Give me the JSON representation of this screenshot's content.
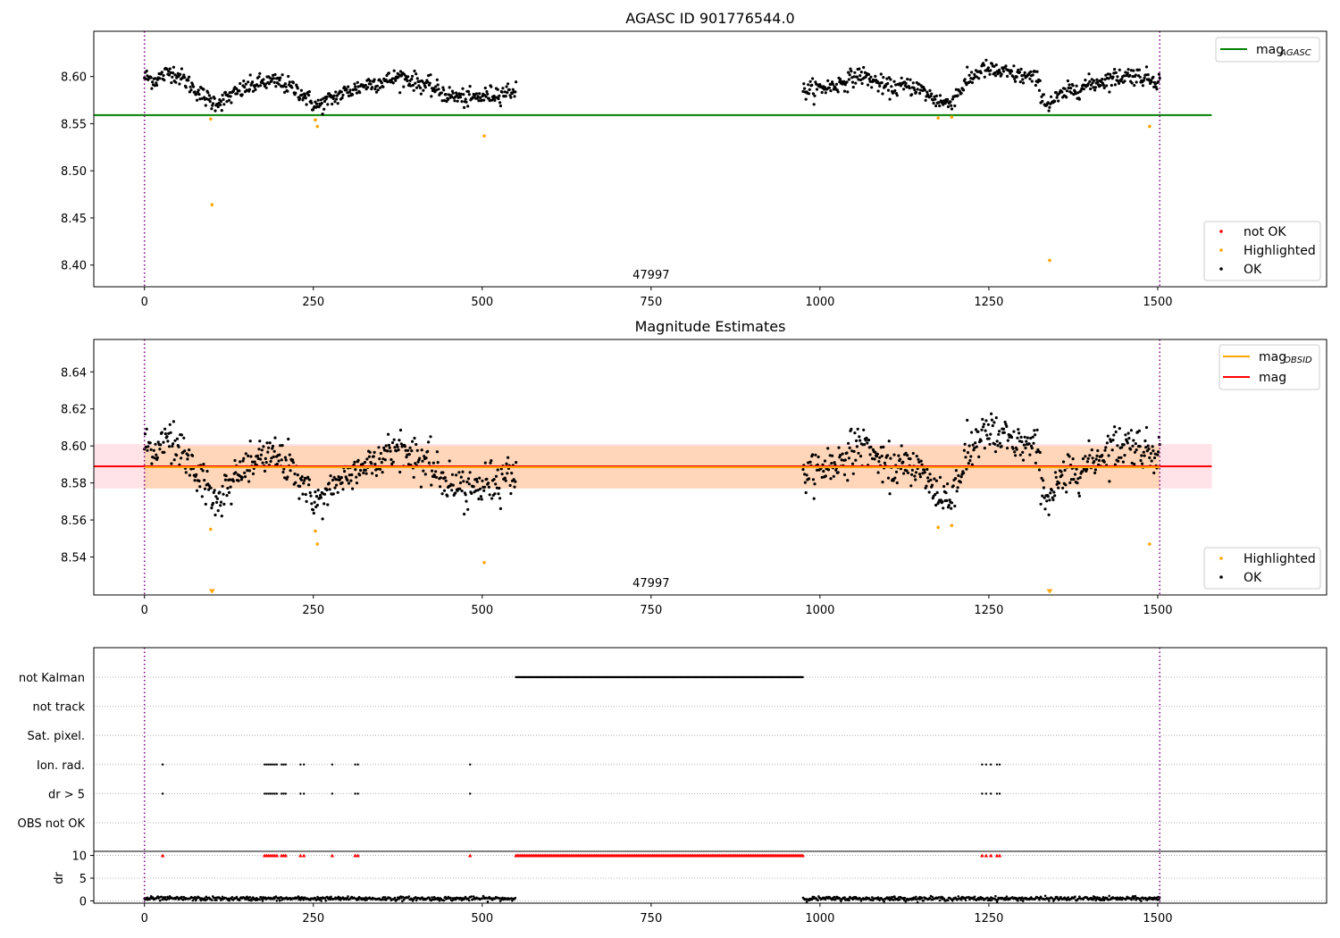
{
  "chart_data": [
    {
      "type": "scatter",
      "title": "AGASC ID 901776544.0",
      "xlim": [
        -75,
        1750
      ],
      "ylim": [
        8.377,
        8.648
      ],
      "x_ticks": [
        0,
        250,
        500,
        750,
        1000,
        1250,
        1500
      ],
      "y_ticks": [
        8.4,
        8.45,
        8.5,
        8.55,
        8.6
      ],
      "y_tick_format": 2,
      "obsid_label": "47997",
      "obsid_label_x": 750,
      "vlines": [
        0,
        1503
      ],
      "hline": {
        "y": 8.559,
        "x_range": [
          -75,
          1580
        ],
        "color": "#008000"
      },
      "line_legend": {
        "text": "mag",
        "subscript": "AGASC",
        "color": "#008000"
      },
      "point_legend": [
        {
          "label": "not OK",
          "color": "#ff0000"
        },
        {
          "label": "Highlighted",
          "color": "#ffa500"
        },
        {
          "label": "OK",
          "color": "#000000"
        }
      ],
      "ok_series": {
        "segments": [
          [
            0,
            550
          ],
          [
            975,
            1503
          ]
        ],
        "profile_x": [
          0,
          15,
          40,
          60,
          80,
          100,
          115,
          150,
          175,
          200,
          230,
          255,
          290,
          330,
          360,
          380,
          420,
          450,
          480,
          550,
          975,
          1020,
          1060,
          1100,
          1140,
          1170,
          1190,
          1220,
          1240,
          1280,
          1320,
          1335,
          1370,
          1420,
          1460,
          1503
        ],
        "profile_y": [
          8.6,
          8.596,
          8.606,
          8.596,
          8.583,
          8.573,
          8.574,
          8.588,
          8.594,
          8.594,
          8.584,
          8.568,
          8.581,
          8.592,
          8.596,
          8.6,
          8.59,
          8.58,
          8.576,
          8.586,
          8.585,
          8.59,
          8.602,
          8.588,
          8.59,
          8.576,
          8.571,
          8.596,
          8.608,
          8.603,
          8.598,
          8.57,
          8.585,
          8.596,
          8.602,
          8.596
        ],
        "noise": 0.008,
        "point_count": 1000
      },
      "highlighted": [
        {
          "x": 98,
          "y": 8.555
        },
        {
          "x": 100,
          "y": 8.464
        },
        {
          "x": 253,
          "y": 8.554
        },
        {
          "x": 256,
          "y": 8.547
        },
        {
          "x": 503,
          "y": 8.537
        },
        {
          "x": 1175,
          "y": 8.556
        },
        {
          "x": 1195,
          "y": 8.557
        },
        {
          "x": 1340,
          "y": 8.405
        },
        {
          "x": 1488,
          "y": 8.547
        }
      ]
    },
    {
      "type": "scatter",
      "title": "Magnitude Estimates",
      "xlim": [
        -75,
        1750
      ],
      "ylim": [
        8.5195,
        8.6575
      ],
      "x_ticks": [
        0,
        250,
        500,
        750,
        1000,
        1250,
        1500
      ],
      "y_ticks": [
        8.54,
        8.56,
        8.58,
        8.6,
        8.62,
        8.64
      ],
      "y_tick_format": 2,
      "obsid_label": "47997",
      "obsid_label_x": 750,
      "vlines": [
        0,
        1503
      ],
      "mag_line": {
        "y": 8.589,
        "color": "#ff0000"
      },
      "mag_band": {
        "y": [
          8.577,
          8.601
        ],
        "x_range": [
          -75,
          1580
        ],
        "color": "#ffc0cb"
      },
      "obsid_line": {
        "y": 8.5885,
        "x_range": [
          0,
          1503
        ],
        "color": "#ffa500"
      },
      "obsid_band": {
        "y": [
          8.577,
          8.6
        ],
        "x_range": [
          0,
          1503
        ],
        "color": "#ffa500"
      },
      "offscale_markers": [
        100,
        1340
      ],
      "line_legend": [
        {
          "text": "mag",
          "subscript": "OBSID",
          "color": "#ffa500"
        },
        {
          "text": "mag",
          "subscript": "",
          "color": "#ff0000"
        }
      ],
      "point_legend": [
        {
          "label": "Highlighted",
          "color": "#ffa500"
        },
        {
          "label": "OK",
          "color": "#000000"
        }
      ]
    },
    {
      "type": "scatter",
      "title": "",
      "xlim": [
        -75,
        1750
      ],
      "x_ticks": [
        0,
        250,
        500,
        750,
        1000,
        1250,
        1500
      ],
      "vlines": [
        0,
        1503
      ],
      "flag_rows": [
        "not Kalman",
        "not track",
        "Sat. pixel.",
        "Ion. rad.",
        "dr > 5",
        "OBS not OK"
      ],
      "not_kalman_range": [
        550,
        975
      ],
      "flag_events": [
        27,
        178,
        181,
        184,
        187,
        190,
        193,
        196,
        203,
        206,
        209,
        231,
        236,
        278,
        312,
        316,
        482,
        1240,
        1246,
        1253,
        1262,
        1266
      ],
      "dr": {
        "ylabel": "dr",
        "y_ticks": [
          0,
          5,
          10
        ],
        "ylim": [
          -0.5,
          10.5
        ],
        "clip_value": 10,
        "typical": 0.5,
        "segments": [
          [
            0,
            550
          ],
          [
            975,
            1503
          ]
        ]
      }
    }
  ]
}
